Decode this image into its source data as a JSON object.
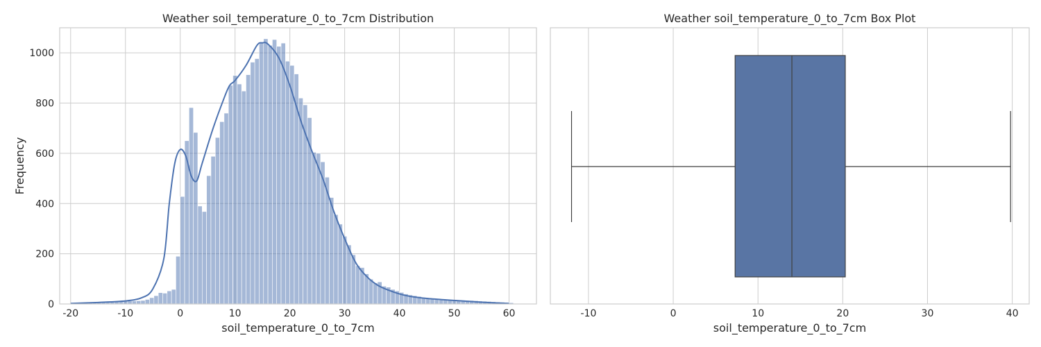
{
  "chart_data": [
    {
      "type": "histogram",
      "title": "Weather soil_temperature_0_to_7cm Distribution",
      "xlabel": "soil_temperature_0_to_7cm",
      "ylabel": "Frequency",
      "xlim": [
        -22,
        65
      ],
      "ylim": [
        0,
        1100
      ],
      "xticks": [
        -20,
        -10,
        0,
        10,
        20,
        30,
        40,
        50,
        60
      ],
      "yticks": [
        0,
        200,
        400,
        600,
        800,
        1000
      ],
      "grid": true,
      "bar_color": "#4c72b0",
      "kde_color": "#4c72b0",
      "bin_start": -20,
      "bin_width": 0.8,
      "values": [
        2,
        3,
        4,
        5,
        6,
        7,
        7,
        8,
        8,
        9,
        10,
        10,
        11,
        12,
        12,
        13,
        14,
        18,
        25,
        33,
        45,
        43,
        52,
        58,
        190,
        428,
        650,
        782,
        683,
        390,
        368,
        511,
        588,
        663,
        726,
        760,
        871,
        910,
        876,
        848,
        913,
        963,
        977,
        1041,
        1056,
        1030,
        1053,
        1026,
        1039,
        967,
        950,
        916,
        820,
        793,
        742,
        604,
        600,
        566,
        505,
        424,
        356,
        318,
        270,
        235,
        196,
        152,
        145,
        120,
        99,
        84,
        88,
        71,
        67,
        58,
        52,
        46,
        40,
        36,
        33,
        30,
        26,
        23,
        20,
        18,
        18,
        17,
        16,
        16,
        15,
        15,
        14,
        14,
        13,
        12,
        11,
        10,
        9,
        8,
        7,
        6,
        5
      ],
      "kde": {
        "x": [
          -20,
          -15,
          -10,
          -7,
          -5,
          -3,
          -2,
          -1,
          0,
          1,
          2,
          3,
          4,
          6,
          8,
          9,
          10,
          12,
          14,
          15,
          16,
          18,
          20,
          22,
          24,
          26,
          28,
          30,
          32,
          34,
          36,
          38,
          40,
          42,
          45,
          50,
          55,
          60
        ],
        "y": [
          2,
          6,
          12,
          25,
          60,
          180,
          400,
          560,
          615,
          590,
          510,
          490,
          560,
          700,
          820,
          870,
          890,
          950,
          1030,
          1040,
          1035,
          980,
          870,
          730,
          610,
          500,
          370,
          260,
          165,
          110,
          75,
          55,
          40,
          30,
          22,
          14,
          7,
          2
        ]
      }
    },
    {
      "type": "box",
      "title": "Weather soil_temperature_0_to_7cm Box Plot",
      "xlabel": "soil_temperature_0_to_7cm",
      "xlim": [
        -14.5,
        42
      ],
      "xticks": [
        -10,
        0,
        10,
        20,
        30,
        40
      ],
      "grid": true,
      "box_color": "#5975a4",
      "line_color": "#3f3f3f",
      "whisker_low": -12,
      "q1": 7.3,
      "median": 14,
      "q3": 20.3,
      "whisker_high": 39.8
    }
  ]
}
